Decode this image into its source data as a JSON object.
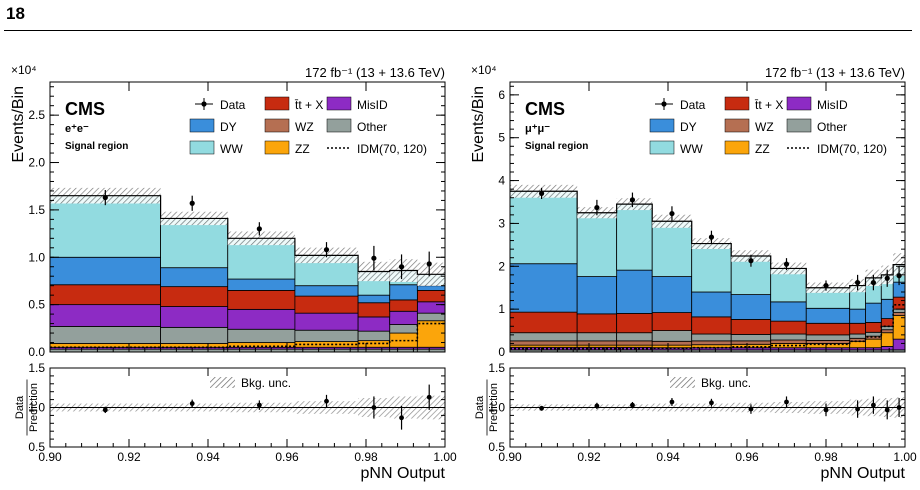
{
  "page": {
    "number": "18"
  },
  "legend_items": [
    {
      "key": "data",
      "label": "Data",
      "style": "marker"
    },
    {
      "key": "ttx",
      "label": "t̄t + X",
      "style": "box",
      "color": "#c72b10"
    },
    {
      "key": "misid",
      "label": "MisID",
      "style": "box",
      "color": "#8d2bc4"
    },
    {
      "key": "dy",
      "label": "DY",
      "style": "box",
      "color": "#3a8edb"
    },
    {
      "key": "wz",
      "label": "WZ",
      "style": "box",
      "color": "#b56f52"
    },
    {
      "key": "other",
      "label": "Other",
      "style": "box",
      "color": "#93a09c"
    },
    {
      "key": "ww",
      "label": "WW",
      "style": "box",
      "color": "#92dbe0"
    },
    {
      "key": "zz",
      "label": "ZZ",
      "style": "box",
      "color": "#fba50b"
    },
    {
      "key": "idm",
      "label": "IDM(70, 120)",
      "style": "dotted"
    }
  ],
  "ratio_legend": "Bkg. unc.",
  "colors": {
    "Other": "#93a09c",
    "MisID": "#8d2bc4",
    "ZZ": "#fba50b",
    "WZ": "#b56f52",
    "ttX": "#c72b10",
    "DY": "#3a8edb",
    "WW": "#92dbe0"
  },
  "chart_data": [
    {
      "type": "bar",
      "stacked": true,
      "title": "CMS",
      "channel": "e⁺e⁻",
      "region": "Signal region",
      "lumi": "172 fb⁻¹ (13 + 13.6 TeV)",
      "multiplier": "×10⁴",
      "xlabel": "pNN Output",
      "ylabel": "Events/Bin",
      "ratio_ylabel_num": "Data",
      "ratio_ylabel_den": "Prediction",
      "xlim": [
        0.9,
        1.0
      ],
      "ylim": [
        0,
        2.85
      ],
      "yticks": [
        "0.0",
        "0.5",
        "1.0",
        "1.5",
        "2.0",
        "2.5"
      ],
      "xticks": [
        "0.90",
        "0.92",
        "0.94",
        "0.96",
        "0.98",
        "1.00"
      ],
      "ratio_ylim": [
        0.5,
        1.5
      ],
      "ratio_yticks": [
        "0.5",
        "1.0",
        "1.5"
      ],
      "bin_edges": [
        0.9,
        0.928,
        0.945,
        0.962,
        0.978,
        0.986,
        0.993,
        1.0
      ],
      "series": [
        {
          "name": "Other",
          "values": [
            0.03,
            0.03,
            0.03,
            0.03,
            0.03,
            0.03,
            0.03
          ]
        },
        {
          "name": "MisID",
          "values": [
            0.02,
            0.02,
            0.02,
            0.02,
            0.02,
            0.02,
            0.02
          ]
        },
        {
          "name": "ZZ",
          "values": [
            0.04,
            0.04,
            0.05,
            0.06,
            0.07,
            0.15,
            0.28
          ]
        },
        {
          "name": "Other",
          "values": [
            0.18,
            0.17,
            0.14,
            0.12,
            0.1,
            0.09,
            0.08
          ]
        },
        {
          "name": "MisID",
          "values": [
            0.23,
            0.22,
            0.21,
            0.18,
            0.15,
            0.14,
            0.12
          ]
        },
        {
          "name": "ttX",
          "values": [
            0.21,
            0.21,
            0.2,
            0.18,
            0.15,
            0.12,
            0.12
          ]
        },
        {
          "name": "DY",
          "values": [
            0.29,
            0.2,
            0.12,
            0.11,
            0.08,
            0.16,
            0.05
          ]
        },
        {
          "name": "WW",
          "values": [
            0.65,
            0.52,
            0.43,
            0.32,
            0.25,
            0.15,
            0.12
          ]
        }
      ],
      "data_points": [
        {
          "x": 0.914,
          "y": 1.63,
          "err": 0.08
        },
        {
          "x": 0.936,
          "y": 1.57,
          "err": 0.08
        },
        {
          "x": 0.953,
          "y": 1.3,
          "err": 0.07
        },
        {
          "x": 0.97,
          "y": 1.08,
          "err": 0.08
        },
        {
          "x": 0.982,
          "y": 0.99,
          "err": 0.13
        },
        {
          "x": 0.989,
          "y": 0.9,
          "err": 0.13
        },
        {
          "x": 0.996,
          "y": 0.93,
          "err": 0.13
        }
      ],
      "idm_values": [
        0.05,
        0.05,
        0.06,
        0.08,
        0.09,
        0.12,
        0.3
      ],
      "ratio_points": [
        {
          "x": 0.914,
          "y": 0.97,
          "err": 0.04
        },
        {
          "x": 0.936,
          "y": 1.05,
          "err": 0.05
        },
        {
          "x": 0.953,
          "y": 1.03,
          "err": 0.06
        },
        {
          "x": 0.97,
          "y": 1.08,
          "err": 0.08
        },
        {
          "x": 0.982,
          "y": 1.0,
          "err": 0.14
        },
        {
          "x": 0.989,
          "y": 0.87,
          "err": 0.15
        },
        {
          "x": 0.996,
          "y": 1.13,
          "err": 0.16
        }
      ],
      "unc_fraction": [
        0.05,
        0.05,
        0.06,
        0.08,
        0.12,
        0.14,
        0.15
      ]
    },
    {
      "type": "bar",
      "stacked": true,
      "title": "CMS",
      "channel": "μ⁺μ⁻",
      "region": "Signal region",
      "lumi": "172 fb⁻¹ (13 + 13.6 TeV)",
      "multiplier": "×10⁴",
      "xlabel": "pNN Output",
      "ylabel": "Events/Bin",
      "ratio_ylabel_num": "Data",
      "ratio_ylabel_den": "Prediction",
      "xlim": [
        0.9,
        1.0
      ],
      "ylim": [
        0,
        6.3
      ],
      "yticks": [
        "0",
        "1",
        "2",
        "3",
        "4",
        "5",
        "6"
      ],
      "xticks": [
        "0.90",
        "0.92",
        "0.94",
        "0.96",
        "0.98",
        "1.00"
      ],
      "ratio_ylim": [
        0.5,
        1.5
      ],
      "ratio_yticks": [
        "0.5",
        "1.0",
        "1.5"
      ],
      "bin_edges": [
        0.9,
        0.917,
        0.927,
        0.936,
        0.946,
        0.956,
        0.966,
        0.975,
        0.986,
        0.99,
        0.994,
        0.997,
        1.0
      ],
      "series": [
        {
          "name": "Other",
          "values": [
            0.05,
            0.05,
            0.05,
            0.05,
            0.05,
            0.05,
            0.05,
            0.05,
            0.05,
            0.05,
            0.05,
            0.05
          ]
        },
        {
          "name": "MisID",
          "values": [
            0.06,
            0.06,
            0.06,
            0.05,
            0.05,
            0.05,
            0.05,
            0.05,
            0.05,
            0.05,
            0.08,
            0.25
          ]
        },
        {
          "name": "ZZ",
          "values": [
            0.05,
            0.05,
            0.05,
            0.06,
            0.07,
            0.08,
            0.1,
            0.1,
            0.15,
            0.2,
            0.32,
            0.55
          ]
        },
        {
          "name": "WZ",
          "values": [
            0.1,
            0.1,
            0.1,
            0.09,
            0.09,
            0.08,
            0.08,
            0.07,
            0.07,
            0.07,
            0.07,
            0.07
          ]
        },
        {
          "name": "Other",
          "values": [
            0.19,
            0.19,
            0.19,
            0.25,
            0.16,
            0.15,
            0.14,
            0.13,
            0.1,
            0.09,
            0.08,
            0.08
          ]
        },
        {
          "name": "ttX",
          "values": [
            0.48,
            0.44,
            0.45,
            0.42,
            0.4,
            0.35,
            0.3,
            0.27,
            0.25,
            0.23,
            0.18,
            0.28
          ]
        },
        {
          "name": "DY",
          "values": [
            1.13,
            0.87,
            1.01,
            0.84,
            0.58,
            0.58,
            0.45,
            0.35,
            0.33,
            0.45,
            0.45,
            0.35
          ]
        },
        {
          "name": "WW",
          "values": [
            1.69,
            1.49,
            1.54,
            1.29,
            1.13,
            0.9,
            0.78,
            0.48,
            0.55,
            0.59,
            0.57,
            0.41
          ]
        }
      ],
      "data_points": [
        {
          "x": 0.908,
          "y": 3.7,
          "err": 0.13
        },
        {
          "x": 0.922,
          "y": 3.37,
          "err": 0.18
        },
        {
          "x": 0.931,
          "y": 3.55,
          "err": 0.17
        },
        {
          "x": 0.941,
          "y": 3.23,
          "err": 0.17
        },
        {
          "x": 0.951,
          "y": 2.68,
          "err": 0.15
        },
        {
          "x": 0.961,
          "y": 2.13,
          "err": 0.14
        },
        {
          "x": 0.97,
          "y": 2.05,
          "err": 0.14
        },
        {
          "x": 0.98,
          "y": 1.55,
          "err": 0.12
        },
        {
          "x": 0.988,
          "y": 1.62,
          "err": 0.18
        },
        {
          "x": 0.992,
          "y": 1.62,
          "err": 0.18
        },
        {
          "x": 0.9955,
          "y": 1.72,
          "err": 0.2
        },
        {
          "x": 0.9985,
          "y": 1.78,
          "err": 0.22
        }
      ],
      "idm_values": [
        0.08,
        0.08,
        0.08,
        0.09,
        0.1,
        0.12,
        0.15,
        0.18,
        0.25,
        0.35,
        0.6,
        1.1
      ],
      "ratio_points": [
        {
          "x": 0.908,
          "y": 0.99,
          "err": 0.03
        },
        {
          "x": 0.922,
          "y": 1.02,
          "err": 0.04
        },
        {
          "x": 0.931,
          "y": 1.03,
          "err": 0.04
        },
        {
          "x": 0.941,
          "y": 1.07,
          "err": 0.05
        },
        {
          "x": 0.951,
          "y": 1.06,
          "err": 0.05
        },
        {
          "x": 0.961,
          "y": 0.98,
          "err": 0.06
        },
        {
          "x": 0.97,
          "y": 1.07,
          "err": 0.07
        },
        {
          "x": 0.98,
          "y": 0.97,
          "err": 0.08
        },
        {
          "x": 0.988,
          "y": 0.98,
          "err": 0.11
        },
        {
          "x": 0.992,
          "y": 1.03,
          "err": 0.11
        },
        {
          "x": 0.9955,
          "y": 0.97,
          "err": 0.12
        },
        {
          "x": 0.9985,
          "y": 1.0,
          "err": 0.12
        }
      ],
      "unc_fraction": [
        0.04,
        0.04,
        0.04,
        0.05,
        0.05,
        0.06,
        0.07,
        0.08,
        0.1,
        0.11,
        0.12,
        0.13
      ]
    }
  ]
}
